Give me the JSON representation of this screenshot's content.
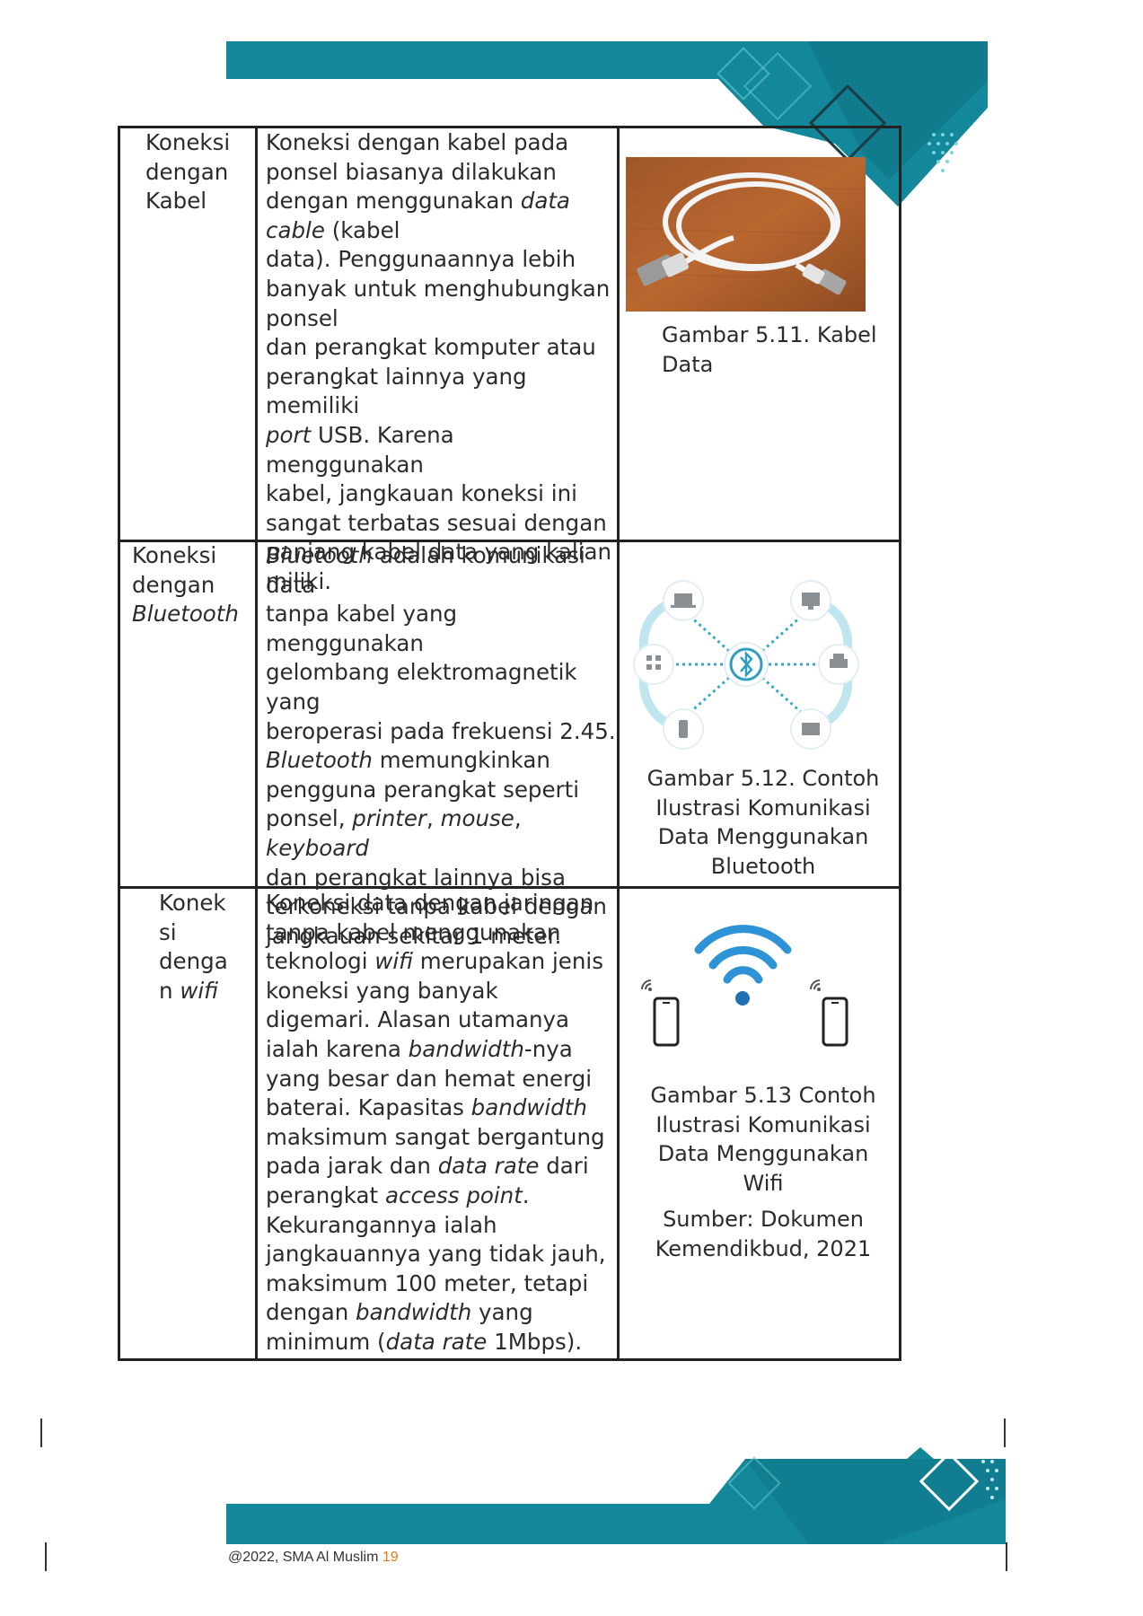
{
  "colors": {
    "teal": "#13889a",
    "teal_dark": "#0e7384",
    "teal_light": "#5fc3cf",
    "border": "#222222",
    "page_number": "#e07b1a"
  },
  "table": {
    "rows": [
      {
        "label": [
          "Koneksi",
          "dengan",
          "Kabel"
        ],
        "description": [
          "Koneksi dengan kabel pada",
          "ponsel biasanya dilakukan",
          "dengan menggunakan ",
          "data",
          "cable",
          " (kabel",
          "data). Penggunaannya lebih",
          "banyak untuk menghubungkan",
          "ponsel",
          "dan perangkat komputer atau",
          "perangkat lainnya yang memiliki",
          "port",
          " USB. Karena menggunakan",
          "kabel, jangkauan koneksi ini",
          "sangat terbatas sesuai dengan",
          "panjang kabel data yang kalian",
          "miliki."
        ],
        "caption": [
          "Gambar 5.11. Kabel",
          "Data"
        ],
        "image_icon": "usb-cable-photo"
      },
      {
        "label": [
          "Koneksi",
          "dengan",
          "Bluetooth"
        ],
        "description": [
          "Bluetooth",
          " adalah komunikasi data",
          "tanpa kabel yang menggunakan",
          "gelombang elektromagnetik yang",
          "beroperasi pada frekuensi 2.45.",
          "Bluetooth",
          " memungkinkan",
          "pengguna perangkat seperti",
          "ponsel, ",
          "printer",
          ", ",
          "mouse",
          ", ",
          "keyboard",
          "dan perangkat lainnya bisa",
          "terkoneksi tanpa kabel dengan",
          "jangkauan sekitar 1 meter."
        ],
        "caption": [
          "Gambar 5.12. Contoh",
          "Ilustrasi Komunikasi",
          "Data Menggunakan",
          "Bluetooth"
        ],
        "image_icon": "bluetooth-network-diagram"
      },
      {
        "label": [
          "Konek",
          "si",
          "denga",
          "n ",
          "wifi"
        ],
        "description": [
          "Koneksi data dengan jaringan",
          "tanpa kabel menggunakan",
          "teknologi ",
          "wifi",
          " merupakan jenis",
          "koneksi yang banyak",
          "digemari. Alasan utamanya",
          "ialah karena ",
          "bandwidth",
          "-nya",
          "yang besar dan hemat energi",
          "baterai. Kapasitas ",
          "bandwidth",
          "maksimum sangat bergantung",
          "pada jarak dan ",
          "data rate",
          " dari",
          "perangkat ",
          "access point",
          ".",
          "Kekurangannya ialah",
          "jangkauannya yang tidak jauh,",
          "maksimum 100 meter, tetapi",
          "dengan ",
          "bandwidth",
          " yang",
          "minimum (",
          "data rate",
          " 1Mbps)."
        ],
        "caption": [
          "Gambar 5.13 Contoh",
          "Ilustrasi Komunikasi",
          "Data Menggunakan",
          "Wifi"
        ],
        "source": [
          "Sumber: Dokumen",
          "Kemendikbud, 2021"
        ],
        "image_icon": "wifi-phones-illustration"
      }
    ]
  },
  "footer": {
    "text": "@2022, SMA Al Muslim",
    "page": "19"
  }
}
